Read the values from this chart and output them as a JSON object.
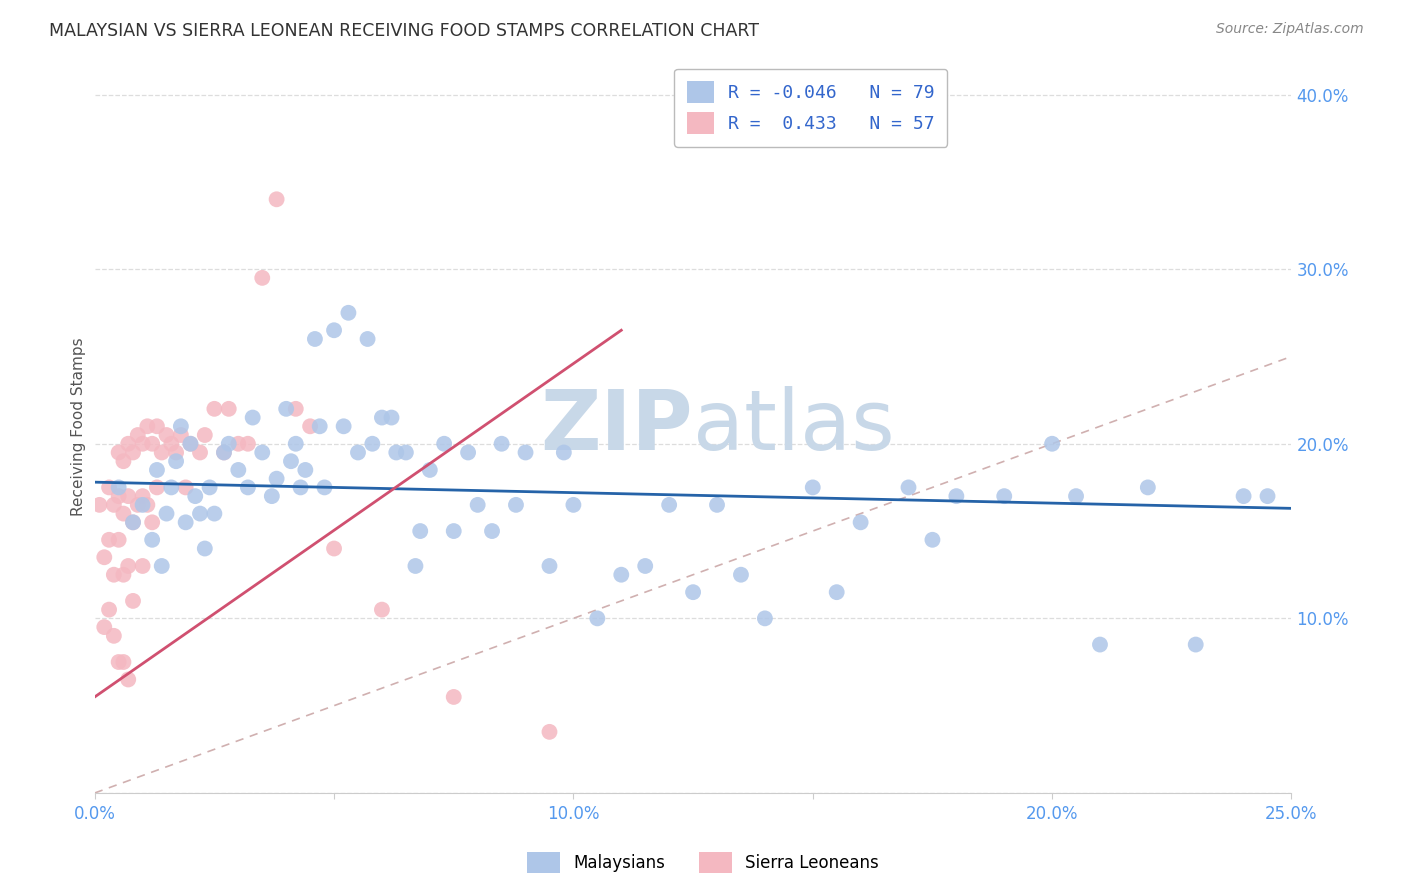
{
  "title": "MALAYSIAN VS SIERRA LEONEAN RECEIVING FOOD STAMPS CORRELATION CHART",
  "source": "Source: ZipAtlas.com",
  "ylabel": "Receiving Food Stamps",
  "xlim": [
    0.0,
    0.25
  ],
  "ylim": [
    0.0,
    0.42
  ],
  "malaysian_R": -0.046,
  "malaysian_N": 79,
  "sierraleone_R": 0.433,
  "sierraleone_N": 57,
  "malaysian_color": "#aec6e8",
  "sierraleone_color": "#f4b8c1",
  "malaysian_line_color": "#2563a8",
  "sierraleone_line_color": "#d05070",
  "diagonal_line_color": "#d0b0b0",
  "watermark_color": "#c8d8e8",
  "tick_color": "#5599ee",
  "grid_color": "#dddddd",
  "malaysian_scatter_x": [
    0.005,
    0.008,
    0.01,
    0.012,
    0.013,
    0.014,
    0.015,
    0.016,
    0.017,
    0.018,
    0.019,
    0.02,
    0.021,
    0.022,
    0.023,
    0.024,
    0.025,
    0.027,
    0.028,
    0.03,
    0.032,
    0.033,
    0.035,
    0.037,
    0.038,
    0.04,
    0.041,
    0.042,
    0.043,
    0.044,
    0.046,
    0.047,
    0.048,
    0.05,
    0.052,
    0.053,
    0.055,
    0.057,
    0.058,
    0.06,
    0.062,
    0.063,
    0.065,
    0.067,
    0.068,
    0.07,
    0.073,
    0.075,
    0.078,
    0.08,
    0.083,
    0.085,
    0.088,
    0.09,
    0.095,
    0.098,
    0.1,
    0.105,
    0.11,
    0.115,
    0.12,
    0.125,
    0.13,
    0.135,
    0.14,
    0.15,
    0.155,
    0.16,
    0.17,
    0.175,
    0.18,
    0.19,
    0.2,
    0.205,
    0.21,
    0.22,
    0.23,
    0.24,
    0.245
  ],
  "malaysian_scatter_y": [
    0.175,
    0.155,
    0.165,
    0.145,
    0.185,
    0.13,
    0.16,
    0.175,
    0.19,
    0.21,
    0.155,
    0.2,
    0.17,
    0.16,
    0.14,
    0.175,
    0.16,
    0.195,
    0.2,
    0.185,
    0.175,
    0.215,
    0.195,
    0.17,
    0.18,
    0.22,
    0.19,
    0.2,
    0.175,
    0.185,
    0.26,
    0.21,
    0.175,
    0.265,
    0.21,
    0.275,
    0.195,
    0.26,
    0.2,
    0.215,
    0.215,
    0.195,
    0.195,
    0.13,
    0.15,
    0.185,
    0.2,
    0.15,
    0.195,
    0.165,
    0.15,
    0.2,
    0.165,
    0.195,
    0.13,
    0.195,
    0.165,
    0.1,
    0.125,
    0.13,
    0.165,
    0.115,
    0.165,
    0.125,
    0.1,
    0.175,
    0.115,
    0.155,
    0.175,
    0.145,
    0.17,
    0.17,
    0.2,
    0.17,
    0.085,
    0.175,
    0.085,
    0.17,
    0.17
  ],
  "sierraleone_scatter_x": [
    0.001,
    0.002,
    0.002,
    0.003,
    0.003,
    0.003,
    0.004,
    0.004,
    0.004,
    0.005,
    0.005,
    0.005,
    0.005,
    0.006,
    0.006,
    0.006,
    0.006,
    0.007,
    0.007,
    0.007,
    0.007,
    0.008,
    0.008,
    0.008,
    0.009,
    0.009,
    0.01,
    0.01,
    0.01,
    0.011,
    0.011,
    0.012,
    0.012,
    0.013,
    0.013,
    0.014,
    0.015,
    0.016,
    0.017,
    0.018,
    0.019,
    0.02,
    0.022,
    0.023,
    0.025,
    0.027,
    0.028,
    0.03,
    0.032,
    0.035,
    0.038,
    0.042,
    0.045,
    0.05,
    0.06,
    0.075,
    0.095
  ],
  "sierraleone_scatter_y": [
    0.165,
    0.135,
    0.095,
    0.175,
    0.145,
    0.105,
    0.165,
    0.125,
    0.09,
    0.195,
    0.17,
    0.145,
    0.075,
    0.19,
    0.16,
    0.125,
    0.075,
    0.2,
    0.17,
    0.13,
    0.065,
    0.195,
    0.155,
    0.11,
    0.205,
    0.165,
    0.2,
    0.17,
    0.13,
    0.21,
    0.165,
    0.2,
    0.155,
    0.21,
    0.175,
    0.195,
    0.205,
    0.2,
    0.195,
    0.205,
    0.175,
    0.2,
    0.195,
    0.205,
    0.22,
    0.195,
    0.22,
    0.2,
    0.2,
    0.295,
    0.34,
    0.22,
    0.21,
    0.14,
    0.105,
    0.055,
    0.035
  ],
  "mal_line_x0": 0.0,
  "mal_line_x1": 0.25,
  "mal_line_y0": 0.178,
  "mal_line_y1": 0.163,
  "sl_line_x0": 0.0,
  "sl_line_x1": 0.11,
  "sl_line_y0": 0.055,
  "sl_line_y1": 0.265
}
